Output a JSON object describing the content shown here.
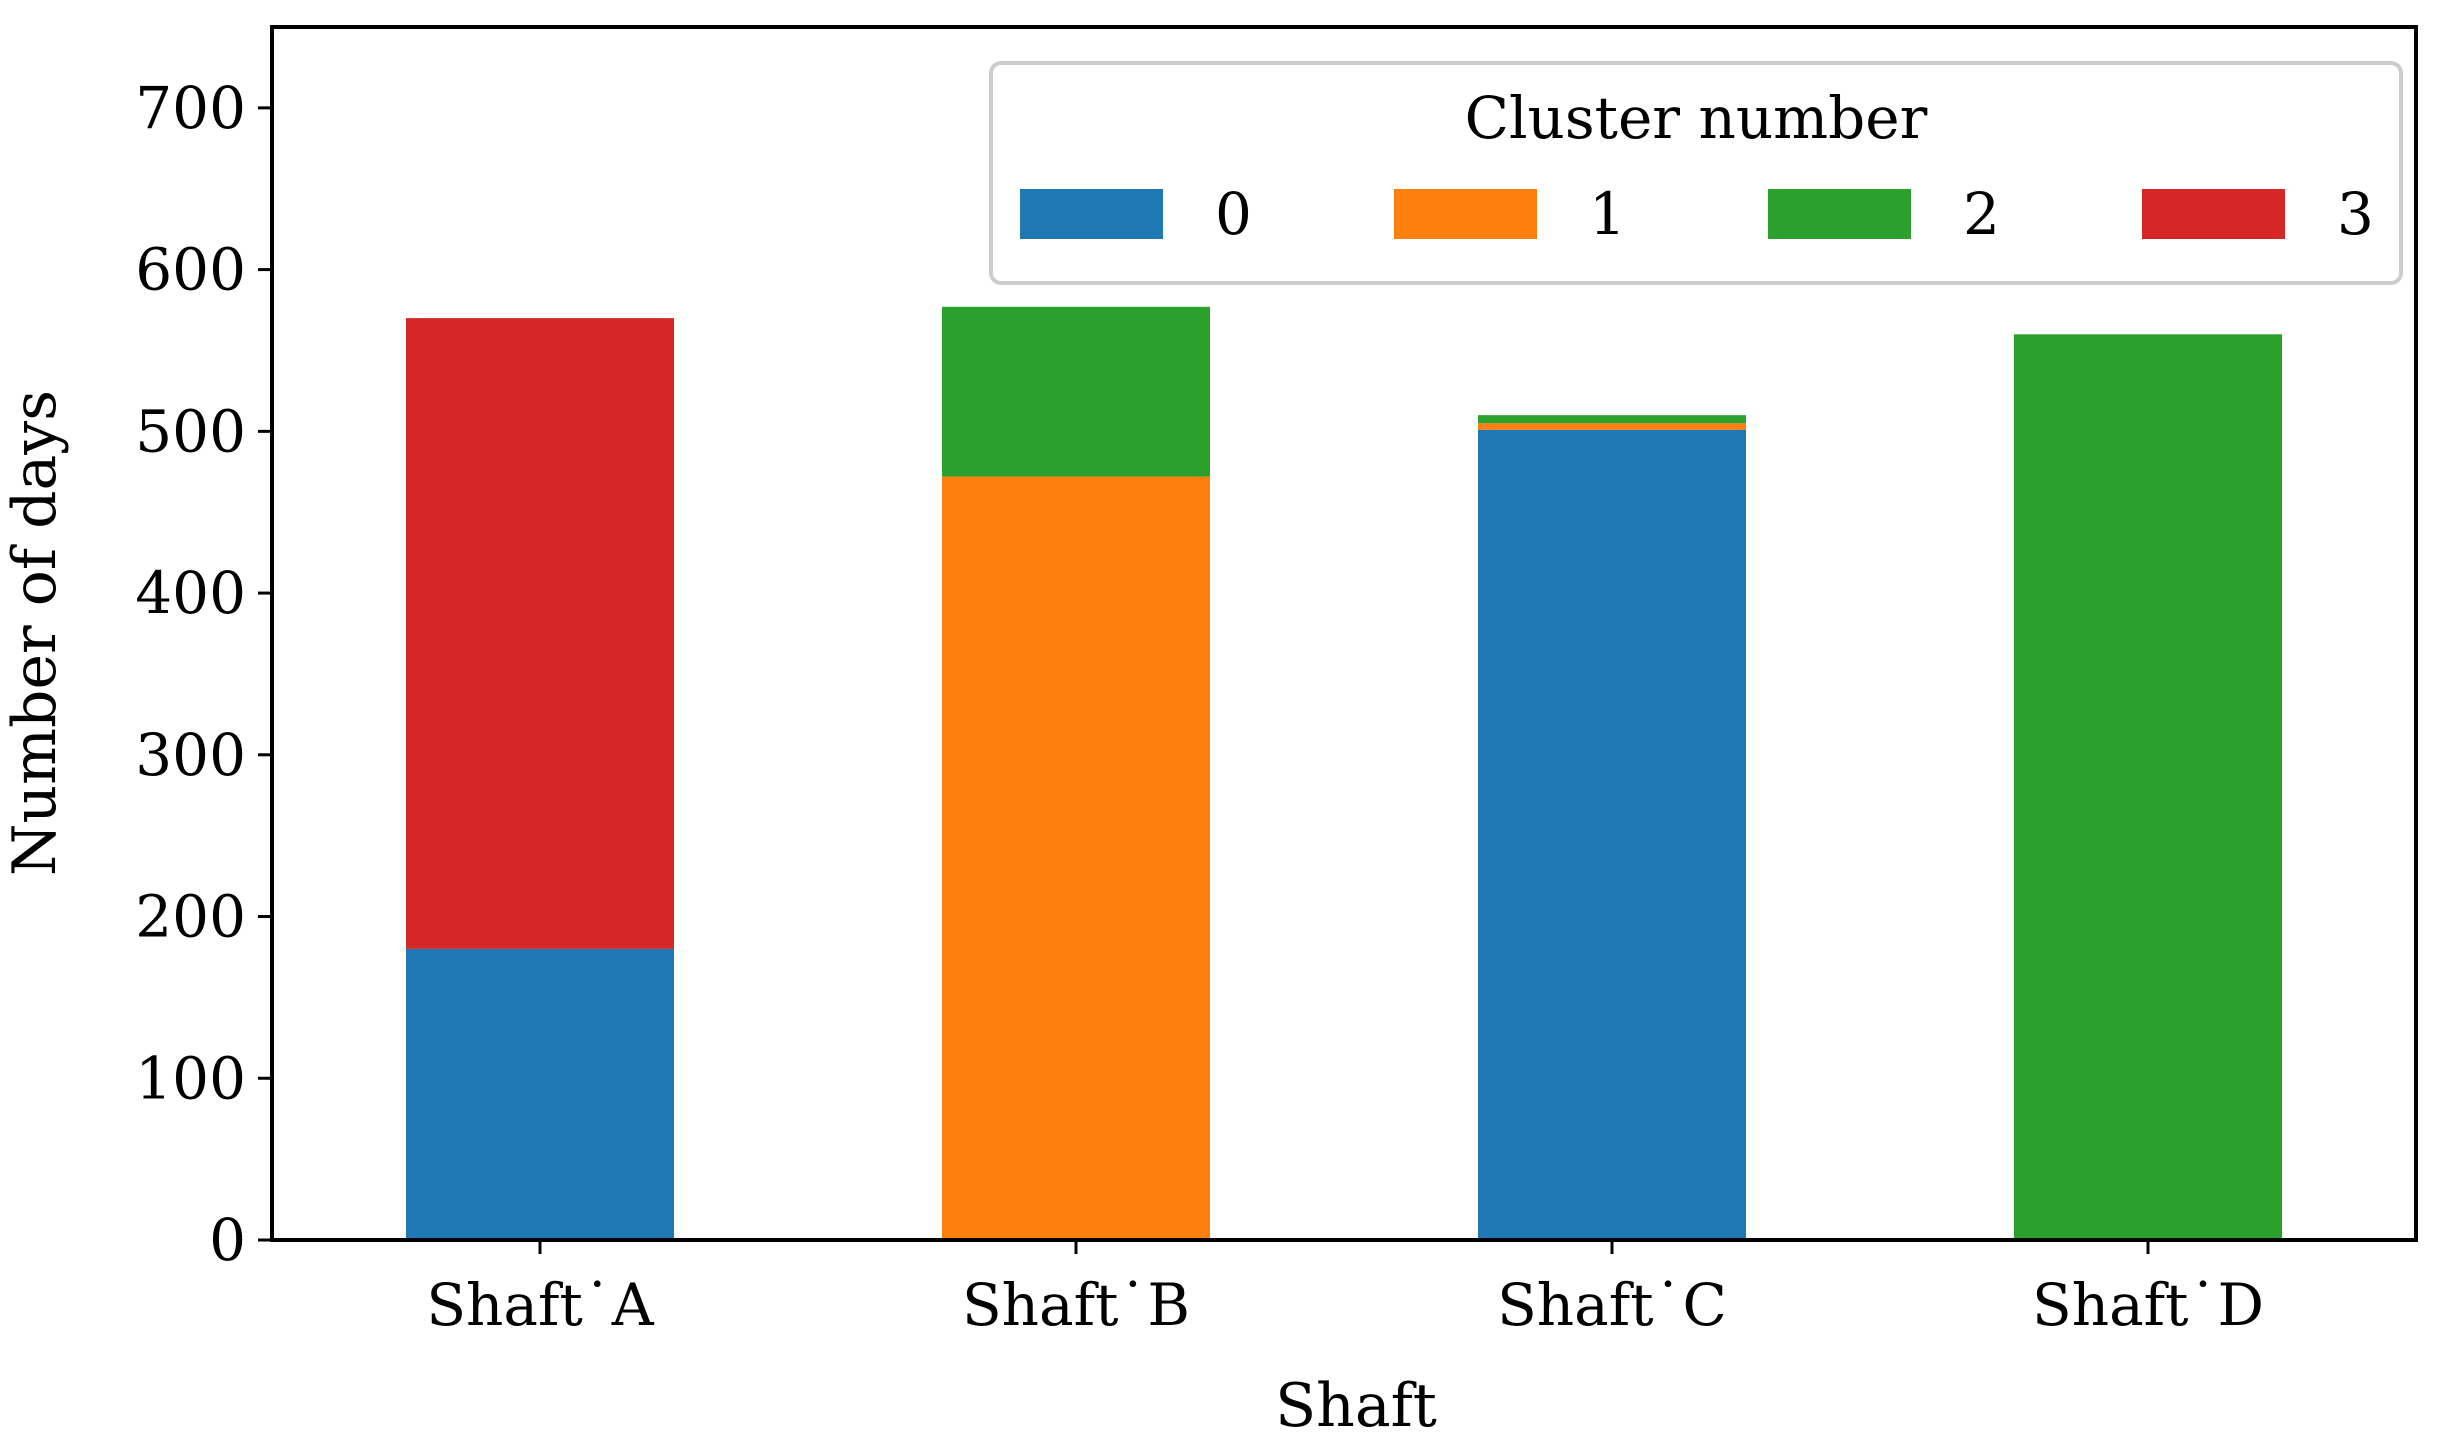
{
  "chart_data": {
    "type": "bar",
    "stacked": true,
    "categories": [
      "Shaft˙A",
      "Shaft˙B",
      "Shaft˙C",
      "Shaft˙D"
    ],
    "series": [
      {
        "name": "0",
        "color": "#1f77b4",
        "values": [
          180,
          0,
          501,
          0
        ]
      },
      {
        "name": "1",
        "color": "#ff7f0e",
        "values": [
          0,
          472,
          4,
          0
        ]
      },
      {
        "name": "2",
        "color": "#2ca02c",
        "values": [
          0,
          105,
          5,
          560
        ]
      },
      {
        "name": "3",
        "color": "#d62728",
        "values": [
          390,
          0,
          0,
          0
        ]
      }
    ],
    "xlabel": "Shaft",
    "ylabel": "Number of days",
    "ylim": [
      0,
      750
    ],
    "yticks": [
      0,
      100,
      200,
      300,
      400,
      500,
      600,
      700
    ],
    "legend": {
      "title": "Cluster number",
      "placement": "top-right"
    },
    "grid": false
  }
}
